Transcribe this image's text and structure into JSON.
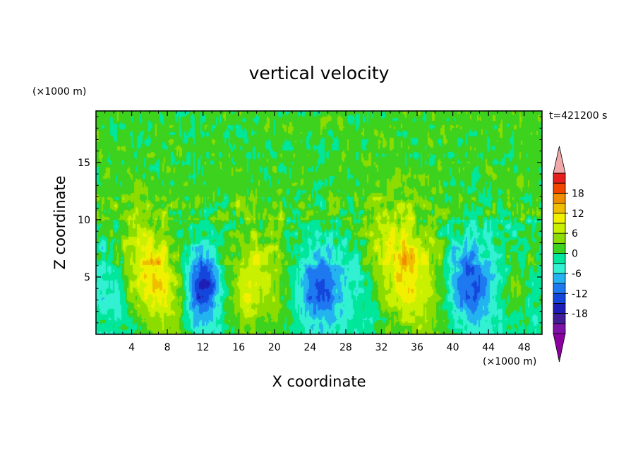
{
  "chart_data": {
    "type": "heatmap",
    "title": "vertical velocity",
    "xlabel": "X coordinate",
    "ylabel": "Z coordinate",
    "x_unit_label": "(×1000 m)",
    "y_unit_label": "(×1000 m)",
    "time_label": "t=421200 s",
    "xlim": [
      0,
      50
    ],
    "ylim": [
      0,
      19.5
    ],
    "x_ticks": [
      4,
      8,
      12,
      16,
      20,
      24,
      28,
      32,
      36,
      40,
      44,
      48
    ],
    "y_ticks": [
      5,
      10,
      15
    ],
    "colorbar": {
      "levels": [
        -21,
        -18,
        -15,
        -12,
        -9,
        -6,
        -3,
        0,
        3,
        6,
        9,
        12,
        15,
        18,
        21
      ],
      "tick_labels": [
        "18",
        "12",
        "6",
        "0",
        "-6",
        "-12",
        "-18"
      ],
      "tick_values": [
        18,
        12,
        6,
        0,
        -6,
        -12,
        -18
      ],
      "colors": [
        "#7c12a6",
        "#3f1e96",
        "#1e1eb4",
        "#1446dc",
        "#1e78f0",
        "#23b4f0",
        "#32f0d2",
        "#00e69b",
        "#3cd21e",
        "#8cdc00",
        "#c8f000",
        "#f0f000",
        "#f0be00",
        "#f08c00",
        "#f04600",
        "#e61e1e"
      ],
      "under_color": "#8c00a0",
      "over_color": "#f0a8a8"
    },
    "features": [
      {
        "x": 6.5,
        "z": 5.0,
        "sx": 2.3,
        "sz": 3.6,
        "amp": 14.0,
        "tilt": 0.45
      },
      {
        "x": 11.5,
        "z": 3.4,
        "sx": 1.3,
        "sz": 2.5,
        "amp": -11.0,
        "tilt": 0.1
      },
      {
        "x": 12.6,
        "z": 5.2,
        "sx": 1.1,
        "sz": 1.9,
        "amp": -7.0,
        "tilt": 0.0
      },
      {
        "x": 18.2,
        "z": 4.4,
        "sx": 2.6,
        "sz": 3.6,
        "amp": 8.5,
        "tilt": 0.0
      },
      {
        "x": 16.8,
        "z": 3.2,
        "sx": 1.0,
        "sz": 1.4,
        "amp": 4.0,
        "tilt": 0.0
      },
      {
        "x": 24.8,
        "z": 4.2,
        "sx": 1.7,
        "sz": 2.6,
        "amp": -10.5,
        "tilt": 0.0
      },
      {
        "x": 34.8,
        "z": 5.3,
        "sx": 2.6,
        "sz": 3.8,
        "amp": 13.5,
        "tilt": 0.35
      },
      {
        "x": 42.0,
        "z": 4.3,
        "sx": 1.6,
        "sz": 2.5,
        "amp": -12.0,
        "tilt": 0.05
      },
      {
        "x": 47.0,
        "z": 3.8,
        "sx": 1.0,
        "sz": 1.6,
        "amp": 5.5,
        "tilt": 0.0
      },
      {
        "x": 28.5,
        "z": 3.5,
        "sx": 2.0,
        "sz": 2.5,
        "amp": -2.5,
        "tilt": 0.0
      },
      {
        "x": 1.5,
        "z": 4.5,
        "sx": 1.5,
        "sz": 3.0,
        "amp": -2.5,
        "tilt": 0.0
      }
    ]
  }
}
